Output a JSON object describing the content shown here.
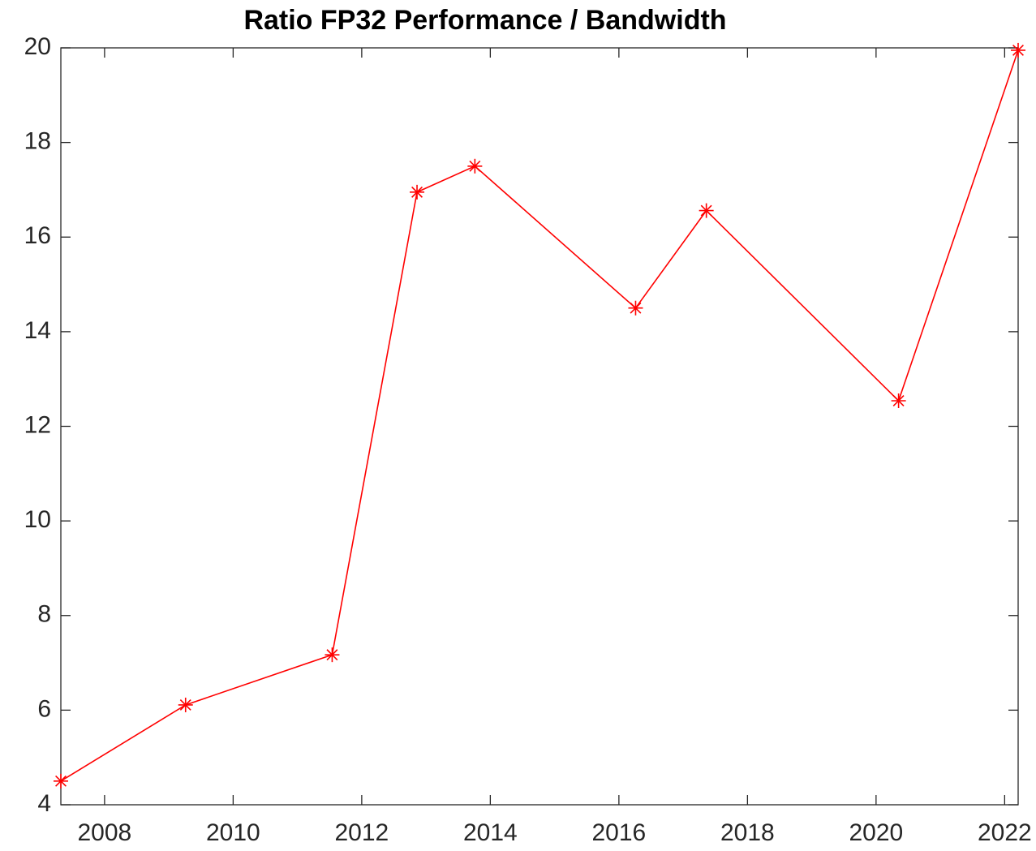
{
  "chart_data": {
    "type": "line",
    "title": "Ratio FP32 Performance / Bandwidth",
    "x": [
      2007.32,
      2009.26,
      2011.54,
      2012.86,
      2013.76,
      2016.26,
      2017.36,
      2020.35,
      2022.21
    ],
    "series": [
      {
        "color": "#ff0000",
        "values": [
          4.5,
          6.11,
          7.17,
          16.95,
          17.5,
          14.5,
          16.56,
          12.54,
          19.95
        ]
      }
    ],
    "xlim": [
      2007.32,
      2022.21
    ],
    "xticks": [
      2008,
      2010,
      2012,
      2014,
      2016,
      2018,
      2020,
      2022
    ],
    "ylim": [
      4,
      20
    ],
    "yticks": [
      4,
      6,
      8,
      10,
      12,
      14,
      16,
      18,
      20
    ],
    "grid": false
  }
}
